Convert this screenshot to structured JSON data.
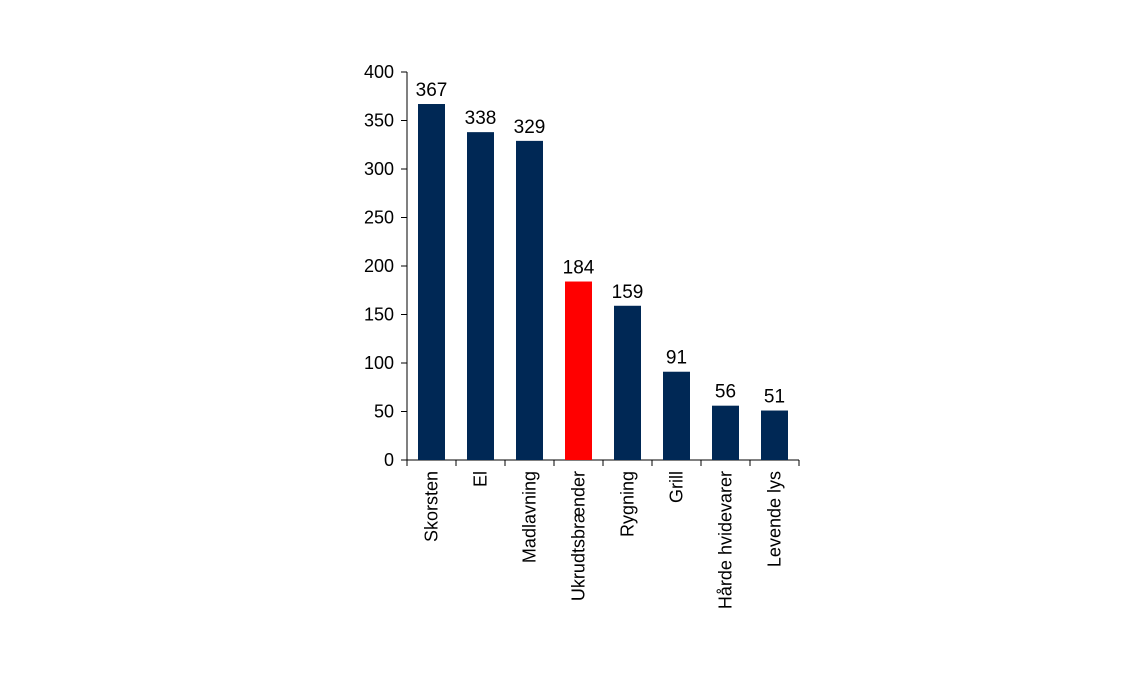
{
  "chart_data": {
    "type": "bar",
    "title": "",
    "xlabel": "",
    "ylabel": "",
    "categories": [
      "Skorsten",
      "El",
      "Madlavning",
      "Ukrudtsbrænder",
      "Rygning",
      "Grill",
      "Hårde hvidevarer",
      "Levende lys"
    ],
    "values": [
      367,
      338,
      329,
      184,
      159,
      91,
      56,
      51
    ],
    "data_labels": [
      "367",
      "338",
      "329",
      "184",
      "159",
      "91",
      "56",
      "51"
    ],
    "highlight_index": 3,
    "ylim": [
      0,
      400
    ],
    "yticks": [
      0,
      50,
      100,
      150,
      200,
      250,
      300,
      350,
      400
    ],
    "ytick_labels": [
      "0",
      "50",
      "100",
      "150",
      "200",
      "250",
      "300",
      "350",
      "400"
    ],
    "grid": false,
    "legend": "none",
    "colors": {
      "bar": "#002855",
      "highlight": "#ff0000",
      "axis": "#000000"
    }
  }
}
